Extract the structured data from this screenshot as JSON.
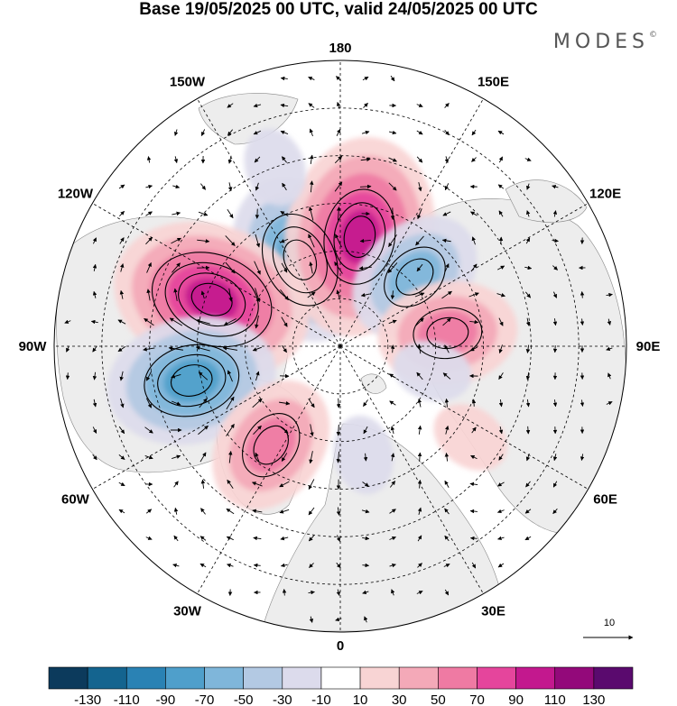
{
  "title": "Base 19/05/2025 00 UTC, valid 24/05/2025 00 UTC",
  "brand": "MODES",
  "brand_mark": "©",
  "longitude_labels": [
    {
      "text": "180",
      "lon": 180
    },
    {
      "text": "150E",
      "lon": 150
    },
    {
      "text": "120E",
      "lon": 120
    },
    {
      "text": "90E",
      "lon": 90
    },
    {
      "text": "60E",
      "lon": 60
    },
    {
      "text": "30E",
      "lon": 30
    },
    {
      "text": "0",
      "lon": 0
    },
    {
      "text": "30W",
      "lon": -30
    },
    {
      "text": "60W",
      "lon": -60
    },
    {
      "text": "90W",
      "lon": -90
    },
    {
      "text": "120W",
      "lon": -120
    },
    {
      "text": "150W",
      "lon": -150
    }
  ],
  "vector_reference": {
    "label": "10"
  },
  "colorbar": {
    "colors": [
      "#0c3a5c",
      "#14648f",
      "#2a82b4",
      "#4f9fcb",
      "#7fb6da",
      "#b3c9e3",
      "#dcdbec",
      "#ffffff",
      "#f8d4d4",
      "#f4a9b8",
      "#ef7aa3",
      "#e5459c",
      "#c3188e",
      "#93097a",
      "#5a0a6e"
    ],
    "tick_labels": [
      "-130",
      "-110",
      "-90",
      "-70",
      "-50",
      "-30",
      "-10",
      "10",
      "30",
      "50",
      "70",
      "90",
      "110",
      "130"
    ]
  },
  "anomaly_centers": [
    {
      "lon": -155,
      "lat": 60,
      "value": -85
    },
    {
      "lon": 170,
      "lat": 55,
      "value": 100
    },
    {
      "lon": 133,
      "lat": 58,
      "value": -70
    },
    {
      "lon": 97,
      "lat": 56,
      "value": 65
    },
    {
      "lon": 75,
      "lat": 60,
      "value": -30
    },
    {
      "lon": 55,
      "lat": 40,
      "value": 20
    },
    {
      "lon": -110,
      "lat": 47,
      "value": 105
    },
    {
      "lon": -77,
      "lat": 42,
      "value": -75
    },
    {
      "lon": -35,
      "lat": 52,
      "value": 70
    },
    {
      "lon": 12,
      "lat": 55,
      "value": -25
    },
    {
      "lon": -160,
      "lat": 30,
      "value": -20
    }
  ]
}
